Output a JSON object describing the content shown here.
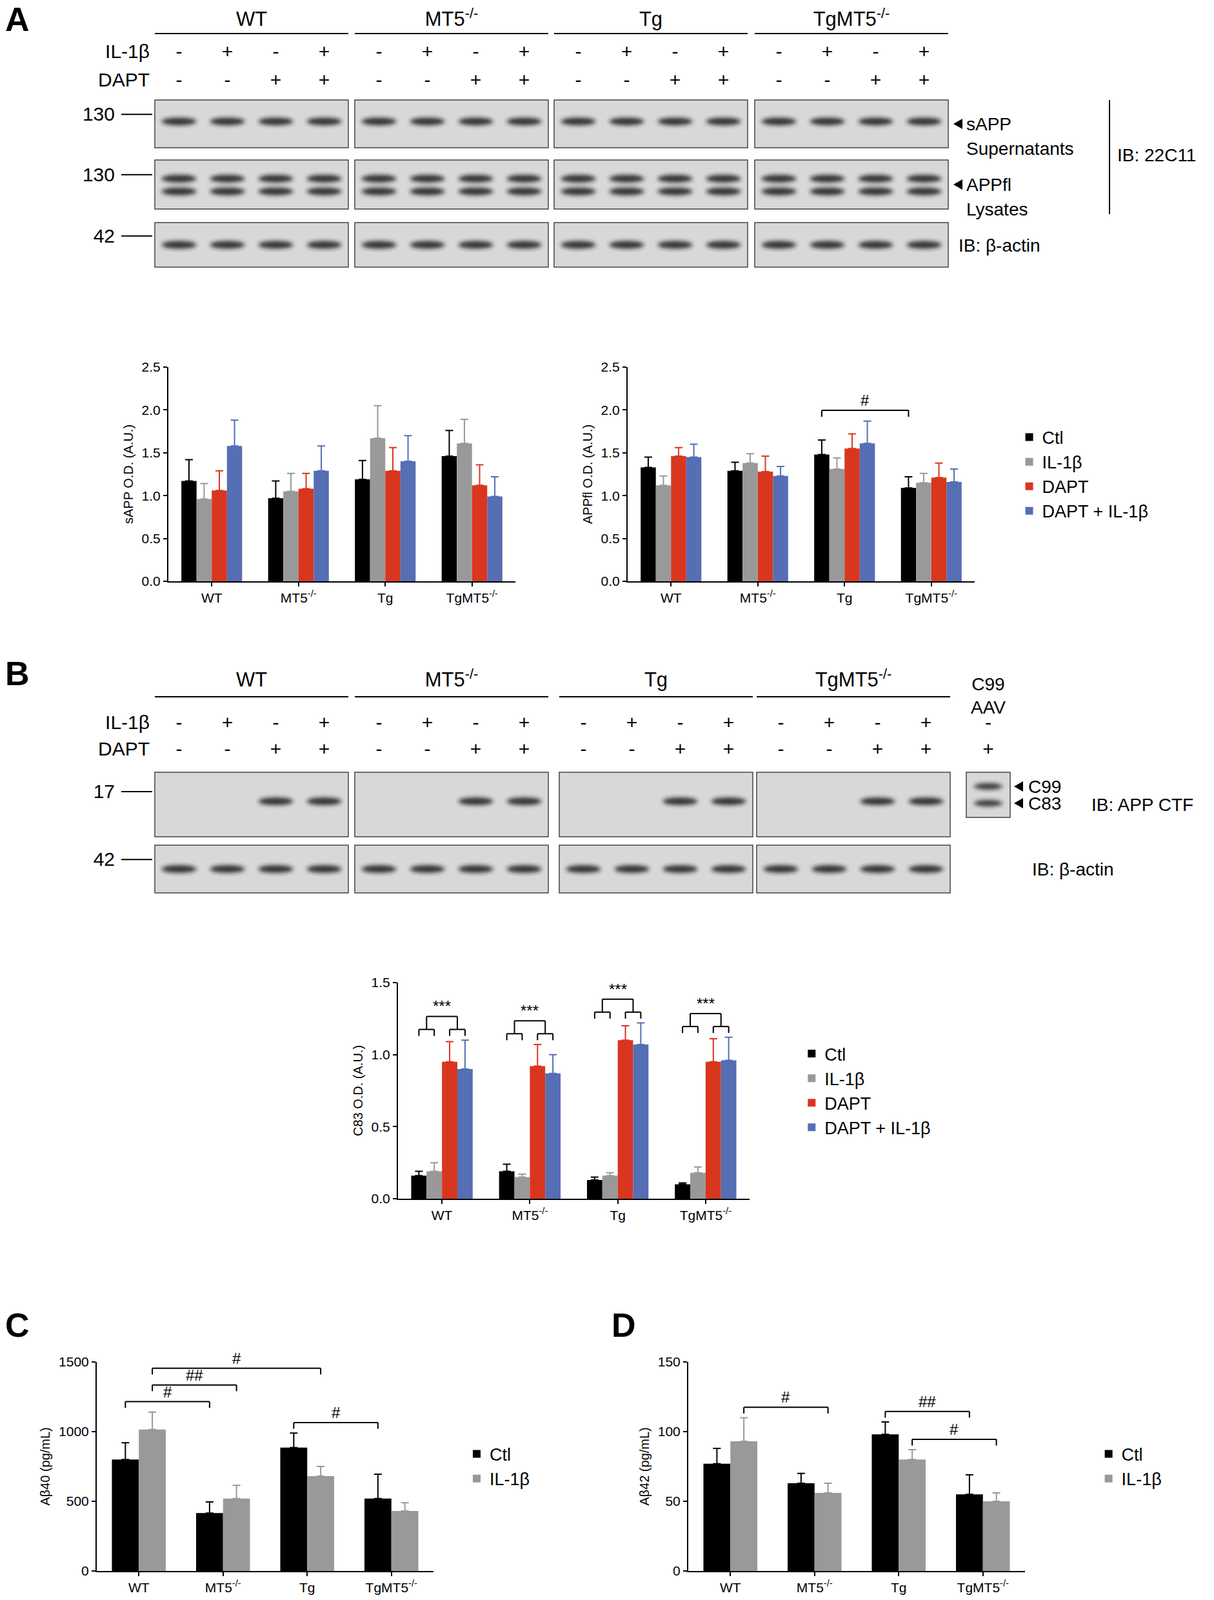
{
  "panels": [
    "A",
    "B",
    "C",
    "D"
  ],
  "blots": [
    {
      "panel": "A",
      "groups": [
        "WT",
        "MT5-/-",
        "Tg",
        "TgMT5-/-"
      ],
      "treatments": [
        {
          "name": "IL-1β",
          "signs": [
            "-",
            "+",
            "-",
            "+"
          ]
        },
        {
          "name": "DAPT",
          "signs": [
            "-",
            "-",
            "+",
            "+"
          ]
        }
      ],
      "rows": [
        {
          "marker": 130,
          "label": [
            "sAPP",
            "Supernatants"
          ]
        },
        {
          "marker": 130,
          "label": [
            "APPfl",
            "Lysates"
          ]
        },
        {
          "marker": 42
        }
      ],
      "antibodies": [
        {
          "text": "IB: 22C11",
          "rows": [
            0,
            1
          ]
        },
        {
          "text": "IB: β-actin",
          "rows": [
            2
          ]
        }
      ]
    },
    {
      "panel": "B",
      "groups": [
        "WT",
        "MT5-/-",
        "Tg",
        "TgMT5-/-"
      ],
      "treatments": [
        {
          "name": "IL-1β",
          "signs": [
            "-",
            "+",
            "-",
            "+"
          ]
        },
        {
          "name": "DAPT",
          "signs": [
            "-",
            "-",
            "+",
            "+"
          ]
        }
      ],
      "rows": [
        {
          "marker": 17,
          "bands": [
            "C99",
            "C83"
          ]
        },
        {
          "marker": 42
        }
      ],
      "antibodies": [
        {
          "text": "IB: APP CTF",
          "rows": [
            0
          ]
        },
        {
          "text": "IB: β-actin",
          "rows": [
            1
          ]
        }
      ],
      "extra_lane": {
        "label": [
          "C99",
          "AAV"
        ],
        "signs": [
          "-",
          "+"
        ]
      }
    }
  ],
  "chart_data": [
    {
      "panel": "A",
      "type": "bar",
      "ylabel": "sAPP O.D. (A.U.)",
      "categories": [
        "WT",
        "MT5-/-",
        "Tg",
        "TgMT5-/-"
      ],
      "series": [
        {
          "name": "Ctl",
          "color": "#000000",
          "values": [
            1.17,
            0.97,
            1.19,
            1.46
          ],
          "error": [
            0.25,
            0.2,
            0.22,
            0.3
          ]
        },
        {
          "name": "IL-1β",
          "color": "#999999",
          "values": [
            0.96,
            1.05,
            1.67,
            1.61
          ],
          "error": [
            0.18,
            0.21,
            0.38,
            0.28
          ]
        },
        {
          "name": "DAPT",
          "color": "#d9361f",
          "values": [
            1.06,
            1.08,
            1.29,
            1.12
          ],
          "error": [
            0.23,
            0.18,
            0.27,
            0.24
          ]
        },
        {
          "name": "DAPT + IL-1β",
          "color": "#556eb4",
          "values": [
            1.58,
            1.29,
            1.4,
            0.99
          ],
          "error": [
            0.3,
            0.29,
            0.3,
            0.23
          ]
        }
      ],
      "ylim": [
        0,
        2.5
      ],
      "yticks": [
        {
          "value": 0,
          "label": "0.0"
        },
        0.5,
        {
          "value": 1,
          "label": "1.0"
        },
        1.5,
        {
          "value": 2,
          "label": "2.0"
        },
        2.5
      ],
      "grid": false,
      "legend": "none",
      "annotations": []
    },
    {
      "panel": "A",
      "type": "bar",
      "ylabel": "APPfl O.D. (A.U.)",
      "categories": [
        "WT",
        "MT5-/-",
        "Tg",
        "TgMT5-/-"
      ],
      "series": [
        {
          "name": "Ctl",
          "color": "#000000",
          "values": [
            1.33,
            1.29,
            1.48,
            1.09
          ],
          "error": [
            0.12,
            0.1,
            0.17,
            0.13
          ]
        },
        {
          "name": "IL-1β",
          "color": "#999999",
          "values": [
            1.12,
            1.38,
            1.31,
            1.15
          ],
          "error": [
            0.11,
            0.11,
            0.13,
            0.11
          ]
        },
        {
          "name": "DAPT",
          "color": "#d9361f",
          "values": [
            1.46,
            1.28,
            1.55,
            1.21
          ],
          "error": [
            0.1,
            0.18,
            0.17,
            0.17
          ]
        },
        {
          "name": "DAPT + IL-1β",
          "color": "#556eb4",
          "values": [
            1.45,
            1.23,
            1.61,
            1.16
          ],
          "error": [
            0.15,
            0.11,
            0.26,
            0.15
          ]
        }
      ],
      "ylim": [
        0,
        2.5
      ],
      "yticks": [
        {
          "value": 0,
          "label": "0.0"
        },
        0.5,
        {
          "value": 1,
          "label": "1.0"
        },
        1.5,
        {
          "value": 2,
          "label": "2.0"
        },
        2.5
      ],
      "grid": false,
      "legend": "right",
      "annotations": [
        {
          "text": "#",
          "from": {
            "category": "Tg",
            "series": "Ctl"
          },
          "to": {
            "category": "TgMT5-/-",
            "series": "Ctl"
          }
        }
      ]
    },
    {
      "panel": "B",
      "type": "bar",
      "ylabel": "C83 O.D. (A.U.)",
      "categories": [
        "WT",
        "MT5-/-",
        "Tg",
        "TgMT5-/-"
      ],
      "series": [
        {
          "name": "Ctl",
          "color": "#000000",
          "values": [
            0.16,
            0.19,
            0.13,
            0.1
          ],
          "error": [
            0.03,
            0.05,
            0.02,
            0.01
          ]
        },
        {
          "name": "IL-1β",
          "color": "#999999",
          "values": [
            0.19,
            0.15,
            0.16,
            0.18
          ],
          "error": [
            0.06,
            0.02,
            0.02,
            0.04
          ]
        },
        {
          "name": "DAPT",
          "color": "#d9361f",
          "values": [
            0.95,
            0.92,
            1.1,
            0.95
          ],
          "error": [
            0.14,
            0.15,
            0.1,
            0.16
          ]
        },
        {
          "name": "DAPT + IL-1β",
          "color": "#556eb4",
          "values": [
            0.9,
            0.87,
            1.07,
            0.96
          ],
          "error": [
            0.2,
            0.13,
            0.15,
            0.16
          ]
        }
      ],
      "ylim": [
        0,
        1.5
      ],
      "yticks": [
        {
          "value": 0,
          "label": "0.0"
        },
        0.5,
        {
          "value": 1,
          "label": "1.0"
        },
        1.5
      ],
      "grid": false,
      "legend": "right",
      "annotations": [
        {
          "text": "***",
          "from": {
            "category": "WT",
            "series": [
              "Ctl",
              "IL-1β"
            ]
          },
          "to": {
            "category": "WT",
            "series": [
              "DAPT",
              "DAPT + IL-1β"
            ]
          }
        },
        {
          "text": "***",
          "from": {
            "category": "MT5-/-",
            "series": [
              "Ctl",
              "IL-1β"
            ]
          },
          "to": {
            "category": "MT5-/-",
            "series": [
              "DAPT",
              "DAPT + IL-1β"
            ]
          }
        },
        {
          "text": "***",
          "from": {
            "category": "Tg",
            "series": [
              "Ctl",
              "IL-1β"
            ]
          },
          "to": {
            "category": "Tg",
            "series": [
              "DAPT",
              "DAPT + IL-1β"
            ]
          }
        },
        {
          "text": "***",
          "from": {
            "category": "TgMT5-/-",
            "series": [
              "Ctl",
              "IL-1β"
            ]
          },
          "to": {
            "category": "TgMT5-/-",
            "series": [
              "DAPT",
              "DAPT + IL-1β"
            ]
          }
        }
      ]
    },
    {
      "panel": "C",
      "type": "bar",
      "ylabel": "Aβ40 (pg/mL)",
      "categories": [
        "WT",
        "MT5-/-",
        "Tg",
        "TgMT5-/-"
      ],
      "series": [
        {
          "name": "Ctl",
          "color": "#000000",
          "values": [
            800,
            415,
            885,
            520
          ],
          "error": [
            120,
            80,
            105,
            175
          ]
        },
        {
          "name": "IL-1β",
          "color": "#999999",
          "values": [
            1015,
            520,
            680,
            430
          ],
          "error": [
            125,
            95,
            70,
            60
          ]
        }
      ],
      "ylim": [
        0,
        1500
      ],
      "yticks": [
        0,
        500,
        1000,
        1500
      ],
      "grid": false,
      "legend": "right",
      "annotations": [
        {
          "text": "#",
          "from": {
            "category": "WT",
            "series": "Ctl"
          },
          "to": {
            "category": "MT5-/-",
            "series": "Ctl"
          }
        },
        {
          "text": "##",
          "from": {
            "category": "WT",
            "series": "IL-1β"
          },
          "to": {
            "category": "MT5-/-",
            "series": "IL-1β"
          }
        },
        {
          "text": "#",
          "from": {
            "category": "WT",
            "series": "IL-1β"
          },
          "to": {
            "category": "Tg",
            "series": "IL-1β"
          }
        },
        {
          "text": "#",
          "from": {
            "category": "Tg",
            "series": "Ctl"
          },
          "to": {
            "category": "TgMT5-/-",
            "series": "Ctl"
          }
        }
      ]
    },
    {
      "panel": "D",
      "type": "bar",
      "ylabel": "Aβ42 (pg/mL)",
      "categories": [
        "WT",
        "MT5-/-",
        "Tg",
        "TgMT5-/-"
      ],
      "series": [
        {
          "name": "Ctl",
          "color": "#000000",
          "values": [
            77,
            63,
            98,
            55
          ],
          "error": [
            11,
            7,
            9,
            14
          ]
        },
        {
          "name": "IL-1β",
          "color": "#999999",
          "values": [
            93,
            56,
            80,
            50
          ],
          "error": [
            17,
            7,
            7,
            6
          ]
        }
      ],
      "ylim": [
        0,
        150
      ],
      "yticks": [
        0,
        50,
        100,
        150
      ],
      "grid": false,
      "legend": "right",
      "annotations": [
        {
          "text": "#",
          "from": {
            "category": "WT",
            "series": "IL-1β"
          },
          "to": {
            "category": "MT5-/-",
            "series": "IL-1β"
          }
        },
        {
          "text": "#",
          "from": {
            "category": "Tg",
            "series": "IL-1β"
          },
          "to": {
            "category": "TgMT5-/-",
            "series": "IL-1β"
          }
        },
        {
          "text": "##",
          "from": {
            "category": "Tg",
            "series": "Ctl"
          },
          "to": {
            "category": "TgMT5-/-",
            "series": "Ctl"
          }
        }
      ]
    }
  ]
}
